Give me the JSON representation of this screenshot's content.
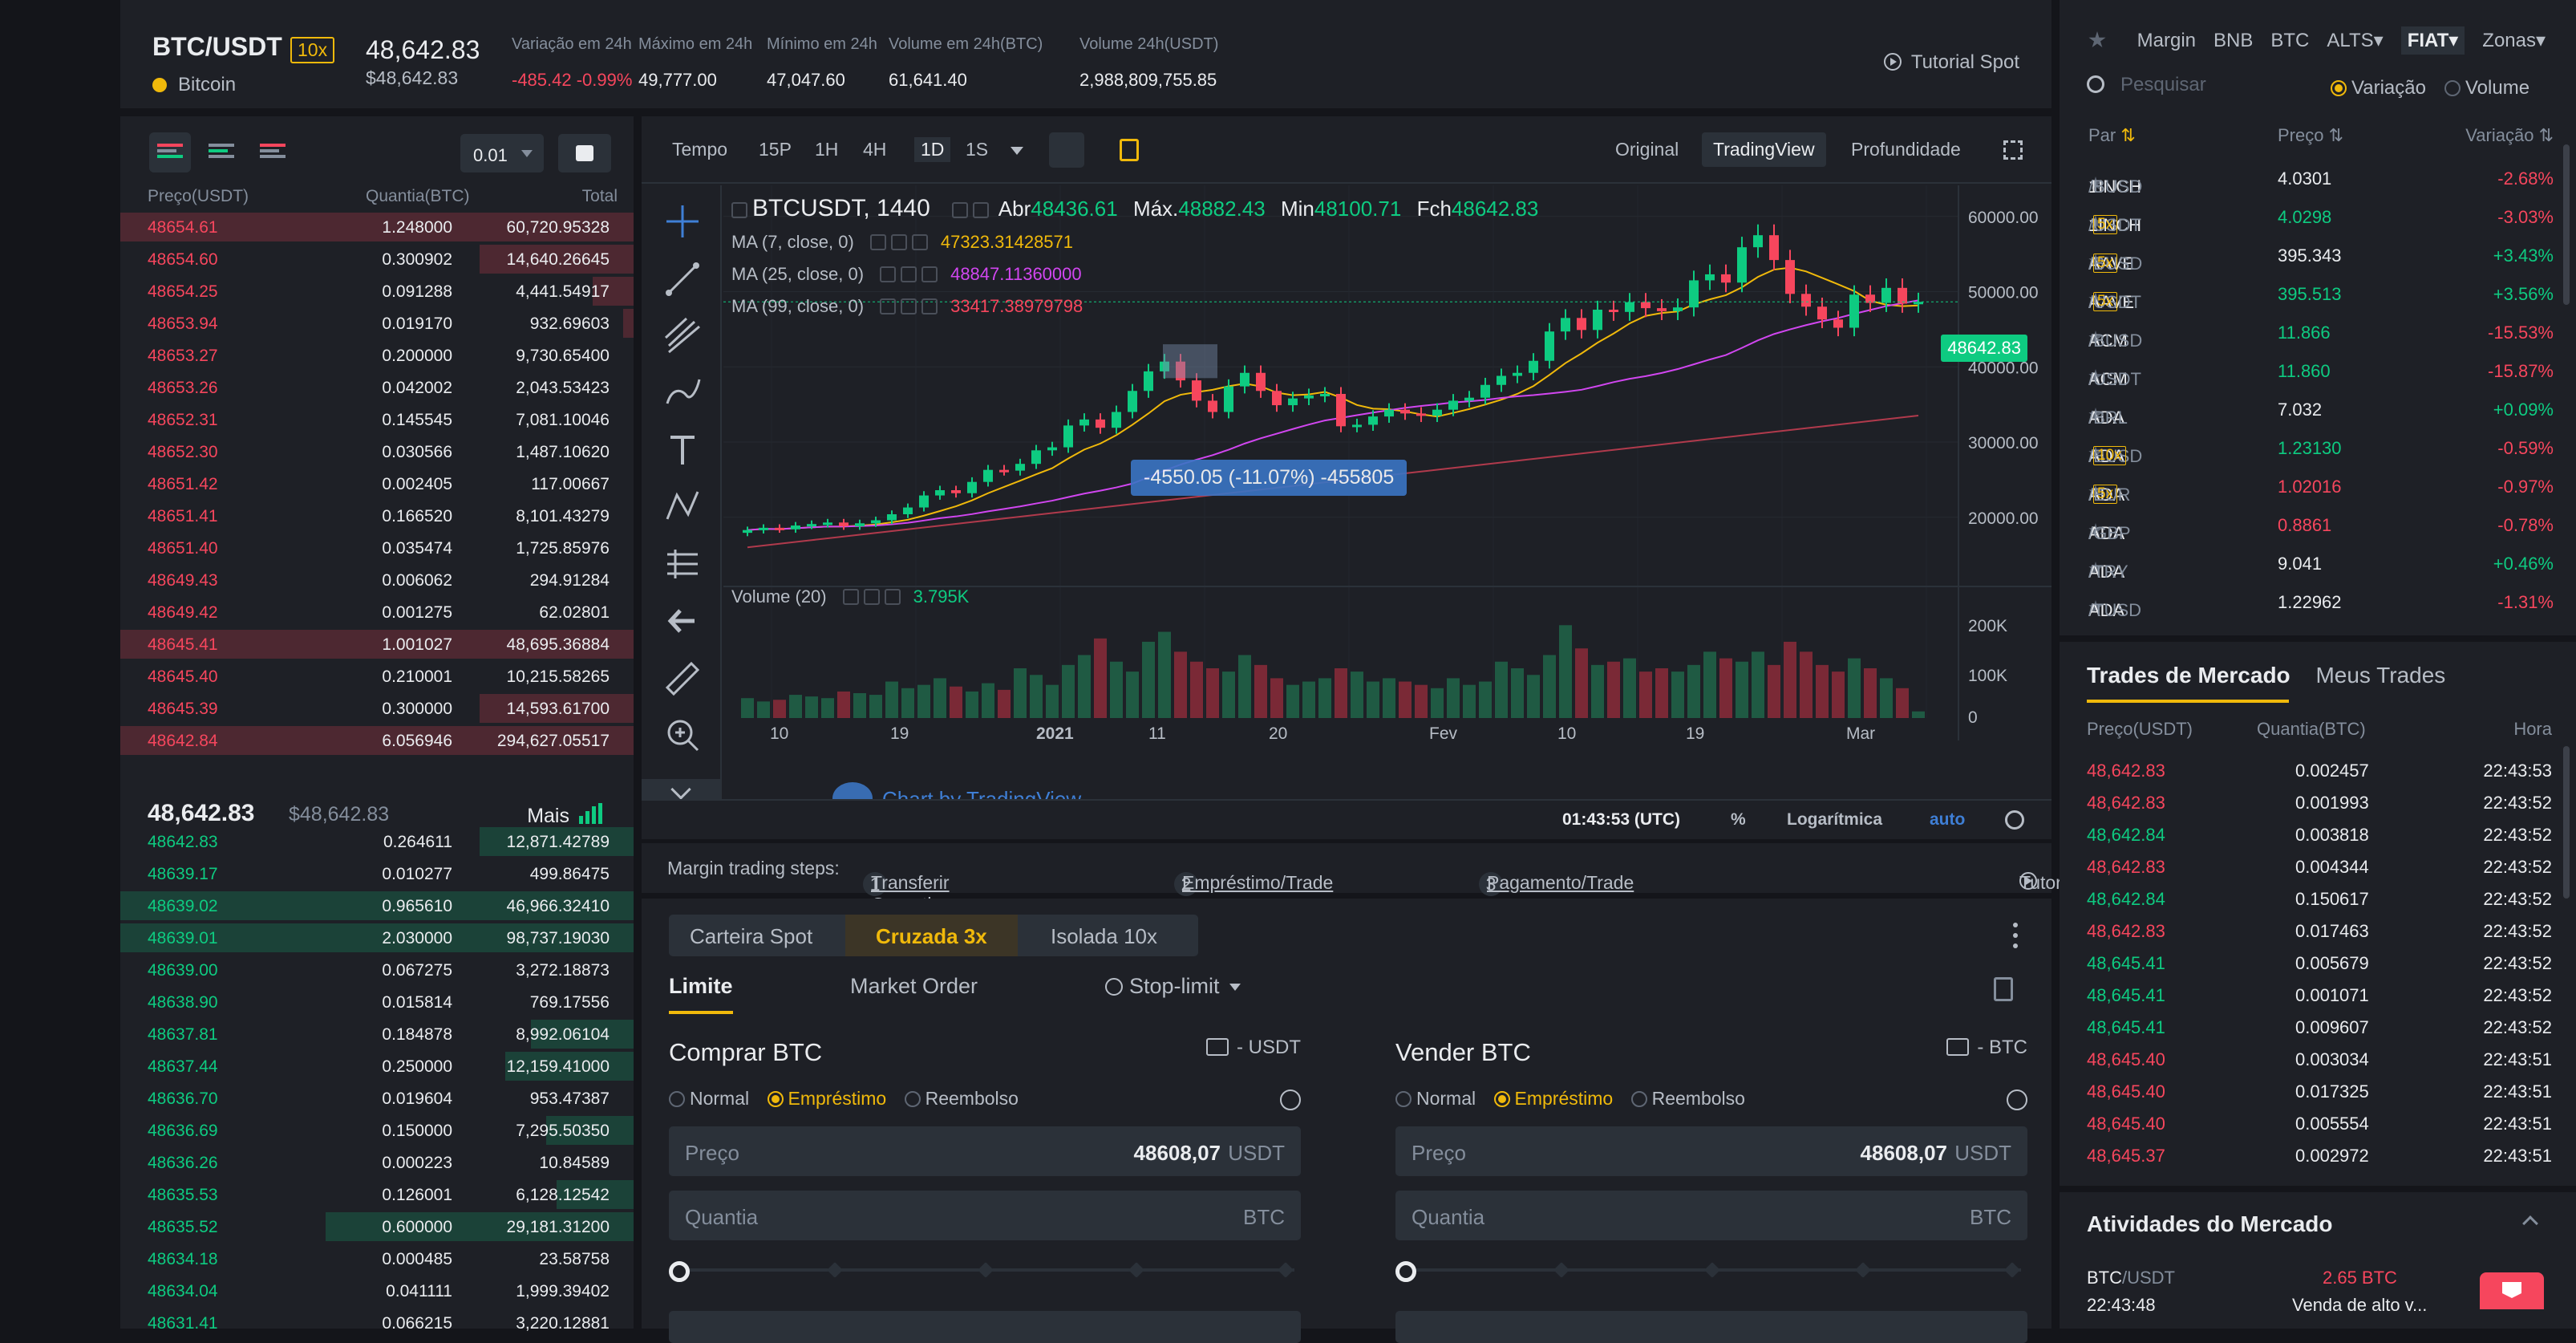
{
  "header": {
    "pair": "BTC/USDT",
    "leverage": "10x",
    "coin_name": "Bitcoin",
    "last_price": "48,642.83",
    "last_price_usd": "$48,642.83",
    "stats": [
      {
        "label": "Variação em 24h",
        "value": "-485.42 -0.99%",
        "color": "red"
      },
      {
        "label": "Máximo em 24h",
        "value": "49,777.00",
        "color": "white"
      },
      {
        "label": "Mínimo em 24h",
        "value": "47,047.60",
        "color": "white"
      },
      {
        "label": "Volume em 24h(BTC)",
        "value": "61,641.40",
        "color": "white"
      },
      {
        "label": "Volume 24h(USDT)",
        "value": "2,988,809,755.85",
        "color": "white"
      }
    ],
    "tutorial_label": "Tutorial Spot"
  },
  "orderbook": {
    "precision": "0.01",
    "col_price": "Preço(USDT)",
    "col_qty": "Quantia(BTC)",
    "col_total": "Total",
    "asks": [
      {
        "price": "48654.61",
        "qty": "1.248000",
        "total": "60,720.95328",
        "depth": 1.0
      },
      {
        "price": "48654.60",
        "qty": "0.300902",
        "total": "14,640.26645",
        "depth": 0.3
      },
      {
        "price": "48654.25",
        "qty": "0.091288",
        "total": "4,441.54917",
        "depth": 0.08
      },
      {
        "price": "48653.94",
        "qty": "0.019170",
        "total": "932.69603",
        "depth": 0.02
      },
      {
        "price": "48653.27",
        "qty": "0.200000",
        "total": "9,730.65400",
        "depth": 0.0
      },
      {
        "price": "48653.26",
        "qty": "0.042002",
        "total": "2,043.53423",
        "depth": 0.0
      },
      {
        "price": "48652.31",
        "qty": "0.145545",
        "total": "7,081.10046",
        "depth": 0.0
      },
      {
        "price": "48652.30",
        "qty": "0.030566",
        "total": "1,487.10620",
        "depth": 0.0
      },
      {
        "price": "48651.42",
        "qty": "0.002405",
        "total": "117.00667",
        "depth": 0.0
      },
      {
        "price": "48651.41",
        "qty": "0.166520",
        "total": "8,101.43279",
        "depth": 0.0
      },
      {
        "price": "48651.40",
        "qty": "0.035474",
        "total": "1,725.85976",
        "depth": 0.0
      },
      {
        "price": "48649.43",
        "qty": "0.006062",
        "total": "294.91284",
        "depth": 0.0
      },
      {
        "price": "48649.42",
        "qty": "0.001275",
        "total": "62.02801",
        "depth": 0.0
      },
      {
        "price": "48645.41",
        "qty": "1.001027",
        "total": "48,695.36884",
        "depth": 1.0
      },
      {
        "price": "48645.40",
        "qty": "0.210001",
        "total": "10,215.58265",
        "depth": 0.0
      },
      {
        "price": "48645.39",
        "qty": "0.300000",
        "total": "14,593.61700",
        "depth": 0.3
      },
      {
        "price": "48642.84",
        "qty": "6.056946",
        "total": "294,627.05517",
        "depth": 1.0
      }
    ],
    "mid_price": "48,642.83",
    "mid_usd": "$48,642.83",
    "more_label": "Mais",
    "bids": [
      {
        "price": "48642.83",
        "qty": "0.264611",
        "total": "12,871.42789",
        "depth": 0.3
      },
      {
        "price": "48639.17",
        "qty": "0.010277",
        "total": "499.86475",
        "depth": 0.0
      },
      {
        "price": "48639.02",
        "qty": "0.965610",
        "total": "46,966.32410",
        "depth": 1.0
      },
      {
        "price": "48639.01",
        "qty": "2.030000",
        "total": "98,737.19030",
        "depth": 1.0
      },
      {
        "price": "48639.00",
        "qty": "0.067275",
        "total": "3,272.18873",
        "depth": 0.0
      },
      {
        "price": "48638.90",
        "qty": "0.015814",
        "total": "769.17556",
        "depth": 0.0
      },
      {
        "price": "48637.81",
        "qty": "0.184878",
        "total": "8,992.06104",
        "depth": 0.2
      },
      {
        "price": "48637.44",
        "qty": "0.250000",
        "total": "12,159.41000",
        "depth": 0.25
      },
      {
        "price": "48636.70",
        "qty": "0.019604",
        "total": "953.47387",
        "depth": 0.0
      },
      {
        "price": "48636.69",
        "qty": "0.150000",
        "total": "7,295.50350",
        "depth": 0.17
      },
      {
        "price": "48636.26",
        "qty": "0.000223",
        "total": "10.84589",
        "depth": 0.0
      },
      {
        "price": "48635.53",
        "qty": "0.126001",
        "total": "6,128.12542",
        "depth": 0.15
      },
      {
        "price": "48635.52",
        "qty": "0.600000",
        "total": "29,181.31200",
        "depth": 0.6
      },
      {
        "price": "48634.18",
        "qty": "0.000485",
        "total": "23.58758",
        "depth": 0.0
      },
      {
        "price": "48634.04",
        "qty": "0.041111",
        "total": "1,999.39402",
        "depth": 0.0
      },
      {
        "price": "48631.41",
        "qty": "0.066215",
        "total": "3,220.12881",
        "depth": 0.0
      }
    ]
  },
  "chart": {
    "timeframes": [
      "Tempo",
      "15P",
      "1H",
      "4H",
      "1D",
      "1S"
    ],
    "active_tf": "1D",
    "views": [
      "Original",
      "TradingView",
      "Profundidade"
    ],
    "active_view": "TradingView",
    "symbol": "BTCUSDT, 1440",
    "ohlc": {
      "o_label": "Abr",
      "o": "48436.61",
      "h_label": "Máx.",
      "h": "48882.43",
      "l_label": "Min",
      "l": "48100.71",
      "c_label": "Fch",
      "c": "48642.83"
    },
    "ma7": {
      "label": "MA (7, close, 0)",
      "value": "47323.31428571",
      "color": "#f0b90b"
    },
    "ma25": {
      "label": "MA (25, close, 0)",
      "value": "48847.11360000",
      "color": "#d146f0"
    },
    "ma99": {
      "label": "MA (99, close, 0)",
      "value": "33417.38979798",
      "color": "#f6465d"
    },
    "price_tag": "48642.83",
    "measure_label": "-4550.05 (-11.07%) -455805",
    "volume_label": "Volume (20)",
    "volume_value": "3.795K",
    "watermark": "Chart by TradingView",
    "y_ticks": [
      "60000.00",
      "50000.00",
      "40000.00",
      "30000.00",
      "20000.00"
    ],
    "vol_ticks": [
      "200K",
      "100K",
      "0"
    ],
    "x_ticks": [
      "10",
      "19",
      "2021",
      "11",
      "20",
      "Fev",
      "10",
      "19",
      "Mar"
    ],
    "clock": "01:43:53 (UTC)",
    "pct": "%",
    "log": "Logarítmica",
    "auto": "auto"
  },
  "chart_data": {
    "type": "candlestick",
    "title": "BTCUSDT, 1440",
    "ylim": [
      14000,
      62000
    ],
    "closes": [
      18300,
      18600,
      18400,
      18900,
      19100,
      19300,
      18800,
      19200,
      19600,
      20400,
      21300,
      22900,
      23600,
      23200,
      24700,
      26300,
      26200,
      27100,
      28900,
      29300,
      32200,
      33000,
      31900,
      34000,
      36800,
      39400,
      40700,
      38200,
      35500,
      34000,
      37400,
      39200,
      36800,
      34900,
      35800,
      36200,
      36400,
      32100,
      32300,
      33400,
      34300,
      33800,
      33500,
      34300,
      35500,
      35900,
      37600,
      38800,
      39200,
      40800,
      44700,
      46500,
      44900,
      47600,
      47300,
      48600,
      47800,
      47400,
      47900,
      51500,
      52300,
      51200,
      55900,
      57500,
      54200,
      49700,
      48000,
      46300,
      45200,
      49600,
      48500,
      50500,
      48400,
      48640
    ],
    "volume": [
      60,
      50,
      55,
      70,
      65,
      60,
      80,
      75,
      70,
      110,
      90,
      100,
      120,
      95,
      80,
      105,
      85,
      150,
      130,
      100,
      160,
      190,
      240,
      170,
      140,
      230,
      260,
      200,
      170,
      150,
      140,
      190,
      160,
      120,
      100,
      110,
      120,
      150,
      140,
      110,
      120,
      110,
      100,
      90,
      120,
      100,
      110,
      170,
      150,
      130,
      190,
      280,
      210,
      160,
      170,
      180,
      140,
      150,
      140,
      160,
      200,
      180,
      170,
      200,
      160,
      230,
      200,
      160,
      140,
      180,
      150,
      120,
      90,
      20
    ],
    "ma7_value": 47323.31,
    "ma25_value": 48847.11,
    "ma99_value": 33417.39
  },
  "margin_steps": {
    "label": "Margin trading steps:",
    "steps": [
      {
        "n": "1",
        "text": "Transferir Garantias"
      },
      {
        "n": "2",
        "text": "Empréstimo/Trade"
      },
      {
        "n": "3",
        "text": "Pagamento/Trade"
      }
    ],
    "tutorial": "Tutorial"
  },
  "order_form": {
    "modes": [
      {
        "label": "Carteira Spot",
        "lev": ""
      },
      {
        "label": "Cruzada",
        "lev": "3x"
      },
      {
        "label": "Isolada",
        "lev": "10x"
      }
    ],
    "tabs": [
      "Limite",
      "Market Order",
      "Stop-limit"
    ],
    "buy": {
      "title": "Comprar BTC",
      "wallet": "- USDT",
      "price_label": "Preço",
      "price": "48608,07",
      "price_unit": "USDT",
      "qty_label": "Quantia",
      "qty_unit": "BTC"
    },
    "sell": {
      "title": "Vender BTC",
      "wallet": "- BTC",
      "price_label": "Preço",
      "price": "48608,07",
      "price_unit": "USDT",
      "qty_label": "Quantia",
      "qty_unit": "BTC"
    },
    "radios": [
      "Normal",
      "Empréstimo",
      "Reembolso"
    ]
  },
  "markets": {
    "tabs": [
      "Margin",
      "BNB",
      "BTC",
      "ALTS▾",
      "FIAT▾",
      "Zonas▾"
    ],
    "search_placeholder": "Pesquisar",
    "radio_change": "Variação",
    "radio_volume": "Volume",
    "col_pair": "Par",
    "col_price": "Preço",
    "col_change": "Variação",
    "rows": [
      {
        "base": "1INCH",
        "quote": "/BUSD",
        "lev": "",
        "price": "4.0301",
        "pc": "white",
        "change": "-2.68%",
        "cc": "red"
      },
      {
        "base": "1INCH",
        "quote": "/USDT",
        "lev": "5x",
        "price": "4.0298",
        "pc": "green",
        "change": "-3.03%",
        "cc": "red"
      },
      {
        "base": "AAVE",
        "quote": "/BUSD",
        "lev": "5x",
        "price": "395.343",
        "pc": "white",
        "change": "+3.43%",
        "cc": "green"
      },
      {
        "base": "AAVE",
        "quote": "/USDT",
        "lev": "5x",
        "price": "395.513",
        "pc": "green",
        "change": "+3.56%",
        "cc": "green"
      },
      {
        "base": "ACM",
        "quote": "/BUSD",
        "lev": "",
        "price": "11.866",
        "pc": "green",
        "change": "-15.53%",
        "cc": "red"
      },
      {
        "base": "ACM",
        "quote": "/USDT",
        "lev": "",
        "price": "11.860",
        "pc": "green",
        "change": "-15.87%",
        "cc": "red"
      },
      {
        "base": "ADA",
        "quote": "/BRL",
        "lev": "",
        "price": "7.032",
        "pc": "white",
        "change": "+0.09%",
        "cc": "green"
      },
      {
        "base": "ADA",
        "quote": "/BUSD",
        "lev": "10x",
        "price": "1.23130",
        "pc": "green",
        "change": "-0.59%",
        "cc": "red"
      },
      {
        "base": "ADA",
        "quote": "/EUR",
        "lev": "5x",
        "price": "1.02016",
        "pc": "red",
        "change": "-0.97%",
        "cc": "red"
      },
      {
        "base": "ADA",
        "quote": "/GBP",
        "lev": "",
        "price": "0.8861",
        "pc": "red",
        "change": "-0.78%",
        "cc": "red"
      },
      {
        "base": "ADA",
        "quote": "/TRY",
        "lev": "",
        "price": "9.041",
        "pc": "white",
        "change": "+0.46%",
        "cc": "green"
      },
      {
        "base": "ADA",
        "quote": "/TUSD",
        "lev": "",
        "price": "1.22962",
        "pc": "white",
        "change": "-1.31%",
        "cc": "red"
      }
    ]
  },
  "trades": {
    "tab_market": "Trades de Mercado",
    "tab_mine": "Meus Trades",
    "col_price": "Preço(USDT)",
    "col_qty": "Quantia(BTC)",
    "col_time": "Hora",
    "rows": [
      {
        "price": "48,642.83",
        "qty": "0.002457",
        "time": "22:43:53",
        "c": "red"
      },
      {
        "price": "48,642.83",
        "qty": "0.001993",
        "time": "22:43:52",
        "c": "red"
      },
      {
        "price": "48,642.84",
        "qty": "0.003818",
        "time": "22:43:52",
        "c": "green"
      },
      {
        "price": "48,642.83",
        "qty": "0.004344",
        "time": "22:43:52",
        "c": "red"
      },
      {
        "price": "48,642.84",
        "qty": "0.150617",
        "time": "22:43:52",
        "c": "green"
      },
      {
        "price": "48,642.83",
        "qty": "0.017463",
        "time": "22:43:52",
        "c": "red"
      },
      {
        "price": "48,645.41",
        "qty": "0.005679",
        "time": "22:43:52",
        "c": "green"
      },
      {
        "price": "48,645.41",
        "qty": "0.001071",
        "time": "22:43:52",
        "c": "green"
      },
      {
        "price": "48,645.41",
        "qty": "0.009607",
        "time": "22:43:52",
        "c": "green"
      },
      {
        "price": "48,645.40",
        "qty": "0.003034",
        "time": "22:43:51",
        "c": "red"
      },
      {
        "price": "48,645.40",
        "qty": "0.017325",
        "time": "22:43:51",
        "c": "red"
      },
      {
        "price": "48,645.40",
        "qty": "0.005554",
        "time": "22:43:51",
        "c": "red"
      },
      {
        "price": "48,645.37",
        "qty": "0.002972",
        "time": "22:43:51",
        "c": "red"
      }
    ]
  },
  "activities": {
    "title": "Atividades do Mercado",
    "pair_base": "BTC",
    "pair_quote": "/USDT",
    "time": "22:43:48",
    "amount": "2.65 BTC",
    "desc": "Venda de alto v..."
  },
  "colors": {
    "green": "#0ecb81",
    "red": "#f6465d",
    "yellow": "#f0b90b",
    "bg": "#14151a",
    "panel": "#1e2026"
  }
}
